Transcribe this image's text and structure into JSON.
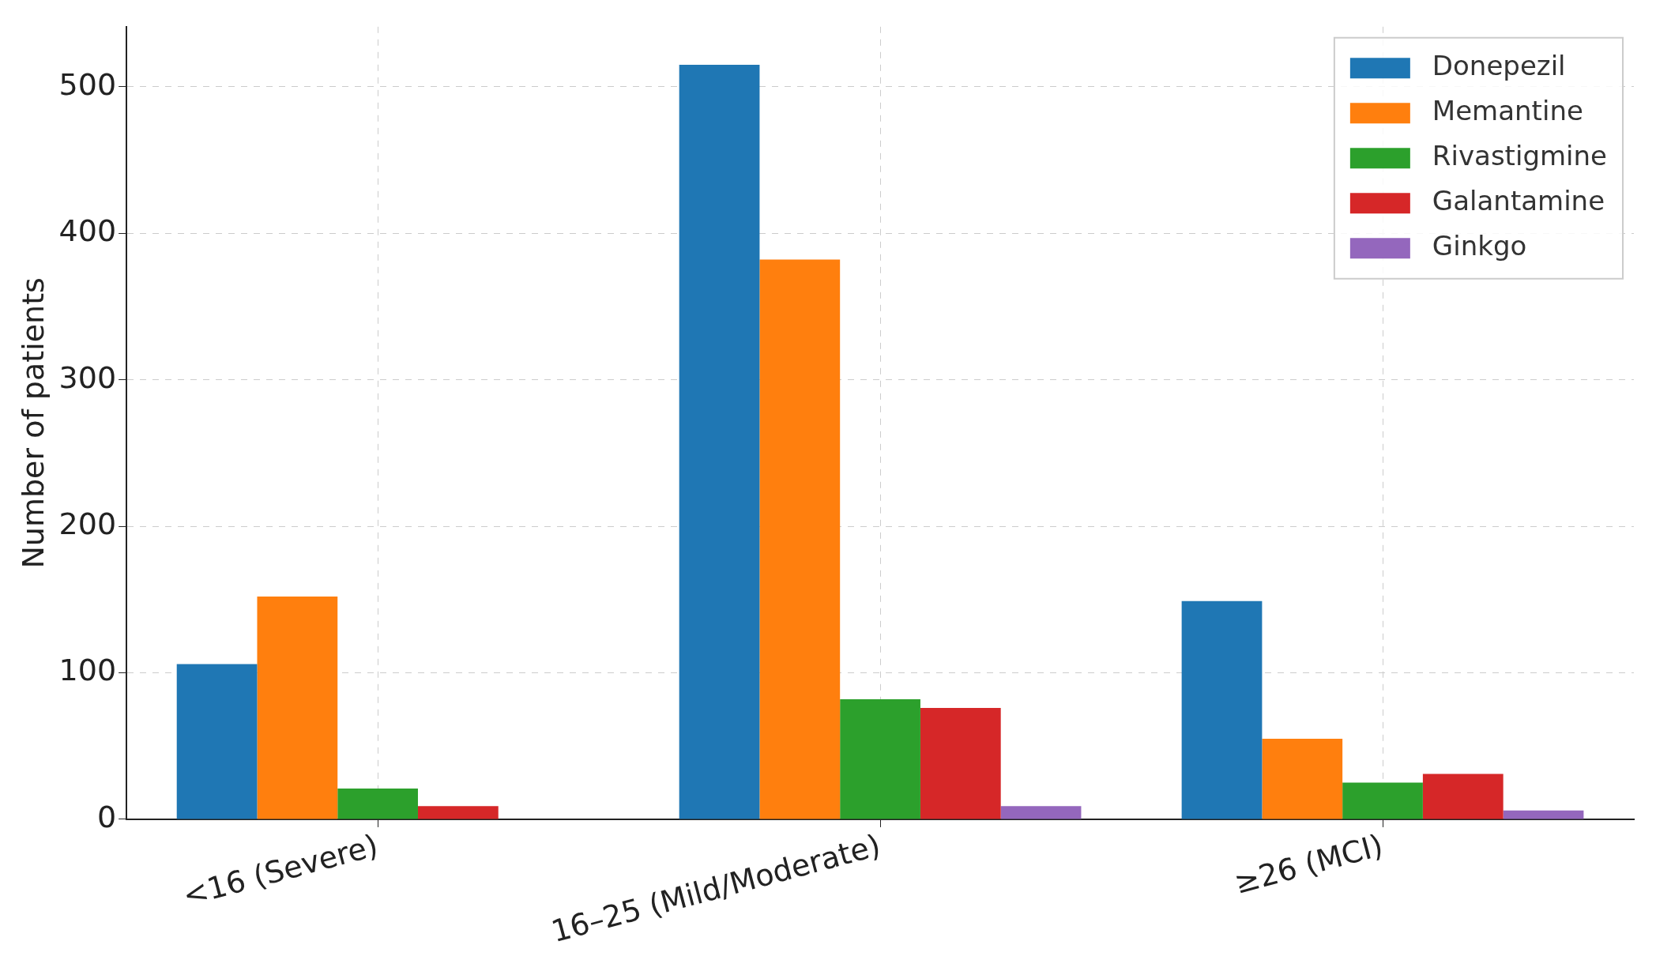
{
  "chart_data": {
    "type": "bar",
    "ylabel": "Number of patients",
    "categories": [
      "<16 (Severe)",
      "16–25 (Mild/Moderate)",
      "≥26 (MCI)"
    ],
    "series": [
      {
        "name": "Donepezil",
        "color": "#1f77b4",
        "values": [
          106,
          515,
          149
        ]
      },
      {
        "name": "Memantine",
        "color": "#ff7f0e",
        "values": [
          152,
          382,
          55
        ]
      },
      {
        "name": "Rivastigmine",
        "color": "#2ca02c",
        "values": [
          21,
          82,
          25
        ]
      },
      {
        "name": "Galantamine",
        "color": "#d62728",
        "values": [
          9,
          76,
          31
        ]
      },
      {
        "name": "Ginkgo",
        "color": "#9467bd",
        "values": [
          0,
          9,
          6
        ]
      }
    ],
    "ylim": [
      0,
      541
    ],
    "yticks": [
      0,
      100,
      200,
      300,
      400,
      500
    ],
    "grid": true,
    "legend": "top right"
  }
}
